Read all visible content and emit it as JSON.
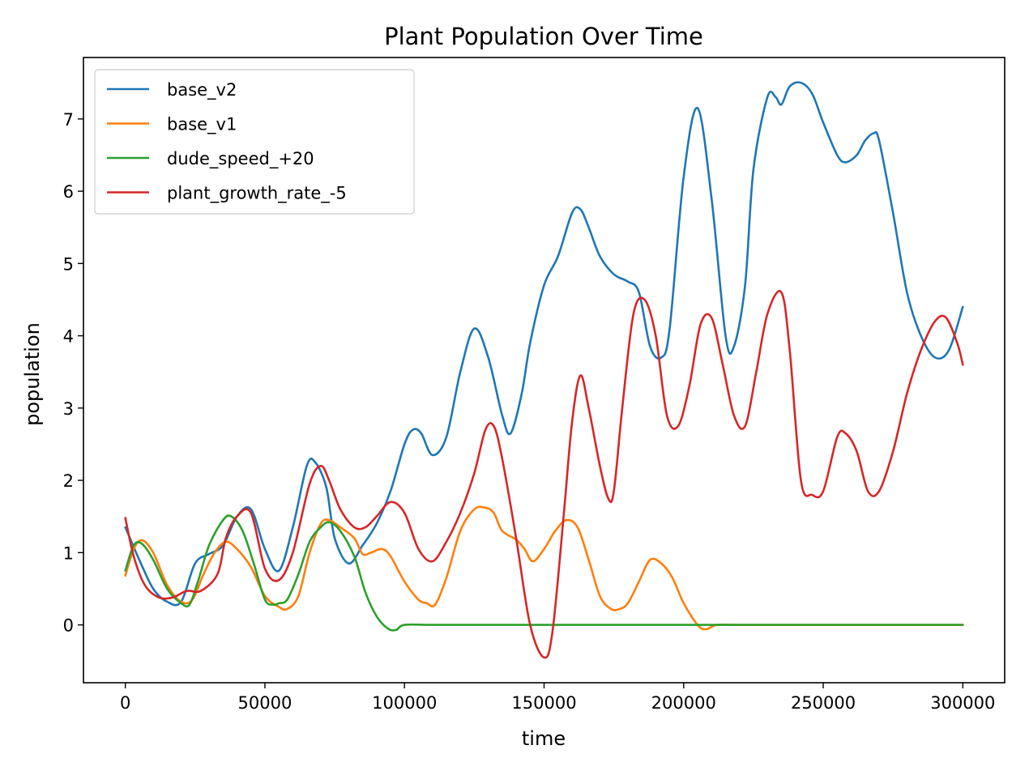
{
  "chart_data": {
    "type": "line",
    "title": "Plant Population Over Time",
    "xlabel": "time",
    "ylabel": "population",
    "xlim": [
      -15000,
      315000
    ],
    "ylim": [
      -0.8,
      7.85
    ],
    "xticks": [
      0,
      50000,
      100000,
      150000,
      200000,
      250000,
      300000
    ],
    "xtick_labels": [
      "0",
      "50000",
      "100000",
      "150000",
      "200000",
      "250000",
      "300000"
    ],
    "yticks": [
      0,
      1,
      2,
      3,
      4,
      5,
      6,
      7
    ],
    "ytick_labels": [
      "0",
      "1",
      "2",
      "3",
      "4",
      "5",
      "6",
      "7"
    ],
    "grid": false,
    "legend_position": "upper-left",
    "series": [
      {
        "name": "base_v2",
        "color": "#1f77b4",
        "x": [
          0,
          5000,
          10000,
          15000,
          20000,
          25000,
          30000,
          35000,
          40000,
          45000,
          50000,
          55000,
          60000,
          65000,
          68000,
          72000,
          75000,
          80000,
          85000,
          90000,
          95000,
          100000,
          103000,
          106000,
          110000,
          115000,
          120000,
          125000,
          130000,
          135000,
          138000,
          142000,
          145000,
          150000,
          155000,
          160000,
          163000,
          166000,
          170000,
          175000,
          180000,
          184000,
          188000,
          192000,
          195000,
          200000,
          205000,
          210000,
          215000,
          218000,
          222000,
          225000,
          230000,
          233000,
          235000,
          238000,
          242000,
          246000,
          250000,
          255000,
          258000,
          262000,
          265000,
          268000,
          270000,
          275000,
          280000,
          285000,
          290000,
          295000,
          300000
        ],
        "values": [
          1.35,
          0.9,
          0.5,
          0.32,
          0.32,
          0.85,
          0.98,
          1.1,
          1.5,
          1.6,
          1.05,
          0.75,
          1.35,
          2.2,
          2.25,
          1.9,
          1.2,
          0.85,
          1.1,
          1.4,
          1.85,
          2.5,
          2.7,
          2.65,
          2.35,
          2.6,
          3.5,
          4.1,
          3.7,
          2.9,
          2.65,
          3.2,
          3.9,
          4.7,
          5.1,
          5.7,
          5.75,
          5.5,
          5.1,
          4.85,
          4.75,
          4.6,
          3.85,
          3.7,
          4.1,
          6.2,
          7.15,
          5.9,
          4.0,
          3.85,
          4.7,
          6.3,
          7.3,
          7.3,
          7.2,
          7.45,
          7.5,
          7.35,
          6.95,
          6.5,
          6.4,
          6.5,
          6.7,
          6.8,
          6.7,
          5.7,
          4.6,
          4.0,
          3.7,
          3.8,
          4.4
        ]
      },
      {
        "name": "base_v1",
        "color": "#ff7f0e",
        "x": [
          0,
          3000,
          6000,
          10000,
          15000,
          20000,
          24000,
          28000,
          32000,
          36000,
          40000,
          45000,
          50000,
          55000,
          58000,
          62000,
          66000,
          70000,
          73000,
          77000,
          82000,
          85000,
          88000,
          92000,
          95000,
          100000,
          105000,
          108000,
          111000,
          115000,
          120000,
          125000,
          129000,
          132000,
          135000,
          140000,
          143000,
          146000,
          150000,
          154000,
          158000,
          162000,
          166000,
          170000,
          174000,
          177000,
          180000,
          184000,
          188000,
          192000,
          196000,
          200000,
          205000,
          208000,
          212000,
          220000,
          240000,
          260000,
          280000,
          300000
        ],
        "values": [
          0.68,
          1.05,
          1.17,
          1.0,
          0.55,
          0.32,
          0.35,
          0.7,
          1.0,
          1.15,
          1.05,
          0.8,
          0.4,
          0.25,
          0.22,
          0.4,
          1.0,
          1.4,
          1.45,
          1.35,
          1.2,
          0.98,
          1.0,
          1.05,
          0.95,
          0.6,
          0.35,
          0.3,
          0.28,
          0.65,
          1.3,
          1.6,
          1.62,
          1.55,
          1.3,
          1.18,
          1.05,
          0.88,
          1.05,
          1.3,
          1.45,
          1.35,
          0.9,
          0.4,
          0.22,
          0.22,
          0.3,
          0.6,
          0.9,
          0.85,
          0.65,
          0.3,
          0.0,
          -0.06,
          0.0,
          0.0,
          0.0,
          0.0,
          0.0,
          0.0
        ]
      },
      {
        "name": "dude_speed_+20",
        "color": "#2ca02c",
        "x": [
          0,
          3000,
          6000,
          10000,
          15000,
          20000,
          23000,
          26000,
          30000,
          35000,
          38000,
          42000,
          46000,
          50000,
          53000,
          55000,
          58000,
          62000,
          66000,
          70000,
          73000,
          77000,
          82000,
          86000,
          90000,
          94000,
          97000,
          100000,
          110000,
          130000,
          160000,
          200000,
          250000,
          300000
        ],
        "values": [
          0.75,
          1.1,
          1.12,
          0.9,
          0.5,
          0.3,
          0.28,
          0.6,
          1.1,
          1.45,
          1.5,
          1.3,
          0.85,
          0.35,
          0.28,
          0.3,
          0.35,
          0.7,
          1.15,
          1.35,
          1.42,
          1.3,
          0.95,
          0.45,
          0.12,
          -0.05,
          -0.07,
          0.0,
          0.0,
          0.0,
          0.0,
          0.0,
          0.0,
          0.0
        ]
      },
      {
        "name": "plant_growth_rate_-5",
        "color": "#d62728",
        "x": [
          0,
          3000,
          7000,
          12000,
          17000,
          22000,
          27000,
          33000,
          36000,
          40000,
          45000,
          50000,
          55000,
          60000,
          66000,
          70000,
          73000,
          77000,
          82000,
          86000,
          90000,
          95000,
          100000,
          105000,
          110000,
          115000,
          120000,
          125000,
          129000,
          132000,
          135000,
          140000,
          145000,
          150000,
          153000,
          157000,
          160000,
          163000,
          166000,
          170000,
          173000,
          175000,
          178000,
          182000,
          186000,
          190000,
          194000,
          198000,
          202000,
          206000,
          210000,
          214000,
          218000,
          222000,
          226000,
          230000,
          235000,
          238000,
          242000,
          246000,
          250000,
          255000,
          258000,
          262000,
          266000,
          270000,
          275000,
          280000,
          285000,
          290000,
          294000,
          298000,
          300000
        ],
        "values": [
          1.48,
          0.95,
          0.55,
          0.38,
          0.38,
          0.47,
          0.47,
          0.7,
          1.2,
          1.5,
          1.55,
          0.78,
          0.62,
          1.0,
          1.95,
          2.2,
          2.0,
          1.6,
          1.35,
          1.35,
          1.5,
          1.7,
          1.55,
          1.05,
          0.88,
          1.15,
          1.55,
          2.1,
          2.7,
          2.75,
          2.3,
          1.2,
          0.0,
          -0.45,
          -0.1,
          1.5,
          2.8,
          3.45,
          3.0,
          2.2,
          1.75,
          1.85,
          3.0,
          4.3,
          4.5,
          4.0,
          2.9,
          2.75,
          3.3,
          4.15,
          4.25,
          3.6,
          2.9,
          2.75,
          3.5,
          4.3,
          4.6,
          3.8,
          2.0,
          1.8,
          1.85,
          2.6,
          2.65,
          2.4,
          1.85,
          1.85,
          2.4,
          3.2,
          3.8,
          4.2,
          4.25,
          3.9,
          3.6
        ]
      }
    ]
  }
}
